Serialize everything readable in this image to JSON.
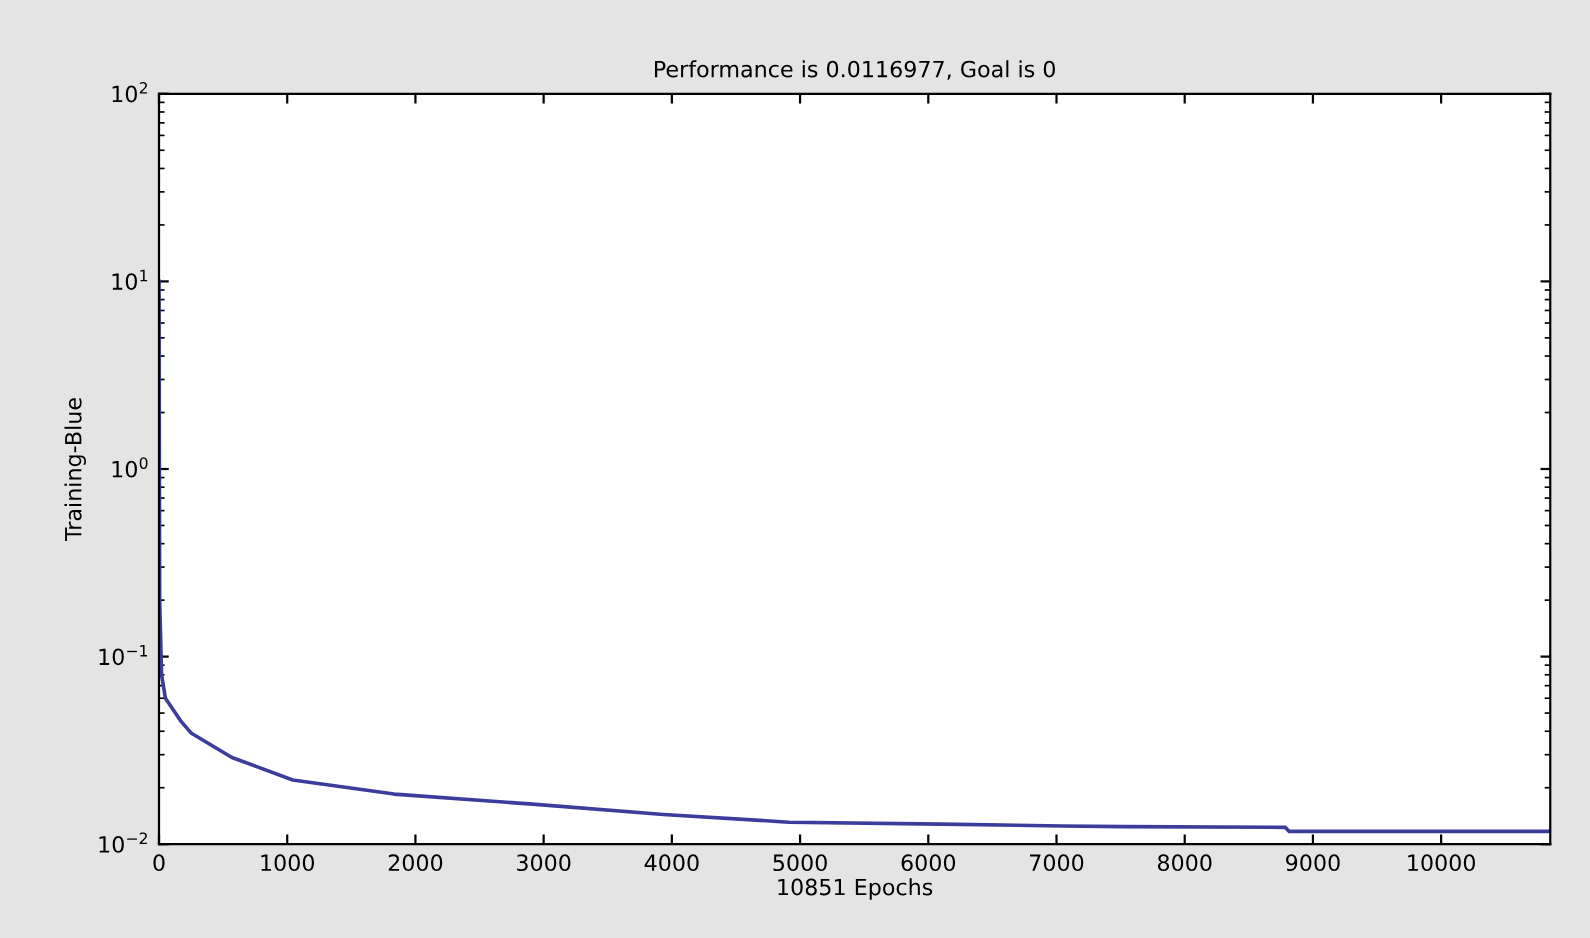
{
  "chart_data": {
    "type": "line",
    "title": "Performance is 0.0116977, Goal is 0",
    "xlabel": "10851 Epochs",
    "ylabel": "Training-Blue",
    "log": "y",
    "xlim": [
      0,
      10851
    ],
    "xticks": [
      0,
      1000,
      2000,
      3000,
      4000,
      5000,
      6000,
      7000,
      8000,
      9000,
      10000
    ],
    "ylim": [
      0.01,
      100
    ],
    "yticks": [
      {
        "value": 0.01,
        "label": "10$^{−2}$"
      },
      {
        "value": 0.1,
        "label": "10$^{−1}$"
      },
      {
        "value": 1,
        "label": "10$^{0}$"
      },
      {
        "value": 10,
        "label": "10$^{1}$"
      },
      {
        "value": 100,
        "label": "10$^{2}$"
      }
    ],
    "grid": false,
    "legend": false,
    "marker": "none",
    "line_style": "solid",
    "series": [
      {
        "color": "#3c3c9c",
        "x": [
          0,
          5,
          20,
          50,
          174,
          253,
          569,
          1043,
          1833,
          2938,
          3934,
          4913,
          6098,
          7046,
          7520,
          8784,
          8815,
          10851
        ],
        "values": [
          10,
          0.2,
          0.08,
          0.06,
          0.045,
          0.039,
          0.029,
          0.022,
          0.0185,
          0.0163,
          0.0144,
          0.0131,
          0.0128,
          0.0125,
          0.0124,
          0.0123,
          0.0117,
          0.0117
        ]
      }
    ]
  }
}
